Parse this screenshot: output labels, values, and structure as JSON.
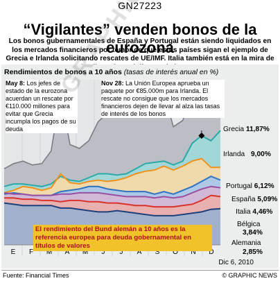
{
  "header": {
    "code": "GN27223",
    "title": "“Vigilantes” venden bonos de la eurozona",
    "dek": "Los bonos gubernamentales de España y Portugal están siendo liquidados en los mercados financieros por temor de que estos países sigan el ejemplo de Grecia e Irlanda solicitando rescates de UE/IMF. Italia también está en la mira de los llamados “vigilantes de bonos”"
  },
  "chart_data": {
    "type": "area",
    "title": "Rendimientos de bonos a 10 años",
    "subtitle": "(tasas de interés anual en %)",
    "categories": [
      "E",
      "F",
      "M",
      "A",
      "M",
      "J",
      "J",
      "A",
      "S",
      "O",
      "N",
      "D"
    ],
    "x": [
      0,
      1,
      2,
      3,
      4,
      5,
      6,
      7,
      8,
      9,
      10,
      11,
      12,
      13,
      14,
      15,
      16,
      17,
      18,
      19,
      20,
      21,
      22,
      23
    ],
    "ylim": [
      0,
      13
    ],
    "series": [
      {
        "name": "Grecia",
        "label": "11,87%",
        "color": "#7a7d84",
        "values": [
          6.0,
          6.4,
          6.6,
          6.3,
          6.4,
          7.4,
          12.0,
          7.9,
          7.6,
          8.2,
          9.7,
          10.4,
          10.6,
          10.4,
          11.1,
          11.6,
          10.6,
          11.9,
          9.3,
          9.8,
          11.8,
          11.3,
          12.0,
          11.9
        ]
      },
      {
        "name": "Irlanda",
        "label": "9,00%",
        "color": "#2aa9a8",
        "values": [
          4.6,
          4.8,
          4.8,
          4.7,
          4.6,
          4.8,
          5.4,
          5.1,
          5.0,
          5.3,
          5.6,
          5.6,
          5.5,
          5.6,
          6.0,
          6.4,
          6.5,
          6.6,
          6.3,
          6.6,
          8.0,
          8.6,
          8.2,
          9.0
        ]
      },
      {
        "name": "Portugal",
        "label": "6,12%",
        "color": "#f0921f",
        "values": [
          4.1,
          4.3,
          4.6,
          4.5,
          4.3,
          4.5,
          5.6,
          4.9,
          4.8,
          5.0,
          5.1,
          5.0,
          5.1,
          5.3,
          5.6,
          5.8,
          5.9,
          6.2,
          5.9,
          6.2,
          6.6,
          6.8,
          6.1,
          6.1
        ]
      },
      {
        "name": "España",
        "label": "5,09%",
        "color": "#2f73c0",
        "values": [
          4.0,
          4.1,
          4.0,
          3.9,
          3.9,
          3.9,
          4.2,
          4.3,
          4.4,
          4.6,
          4.6,
          4.4,
          4.3,
          4.2,
          4.2,
          4.2,
          4.0,
          4.2,
          4.0,
          4.3,
          4.6,
          5.0,
          5.4,
          5.1
        ]
      },
      {
        "name": "Italia",
        "label": "4,46%",
        "color": "#9a4fa0",
        "values": [
          4.1,
          4.0,
          4.0,
          3.9,
          3.9,
          3.9,
          4.0,
          4.0,
          4.1,
          4.1,
          4.1,
          4.0,
          3.9,
          3.8,
          3.8,
          3.8,
          3.7,
          3.8,
          3.7,
          3.8,
          4.1,
          4.4,
          4.6,
          4.5
        ]
      },
      {
        "name": "Bélgica",
        "label": "3,84%",
        "color": "#d9322b",
        "values": [
          3.7,
          3.7,
          3.6,
          3.6,
          3.5,
          3.5,
          3.4,
          3.5,
          3.5,
          3.4,
          3.4,
          3.3,
          3.3,
          3.2,
          3.1,
          3.1,
          3.0,
          3.0,
          3.0,
          3.1,
          3.2,
          3.5,
          3.9,
          3.8
        ]
      },
      {
        "name": "Alemania",
        "label": "2,85%",
        "color": "#1f3f7a",
        "values": [
          3.3,
          3.2,
          3.1,
          3.1,
          3.1,
          3.1,
          2.9,
          2.9,
          2.8,
          2.7,
          2.6,
          2.6,
          2.7,
          2.6,
          2.5,
          2.4,
          2.3,
          2.3,
          2.3,
          2.4,
          2.5,
          2.6,
          2.8,
          2.85
        ]
      }
    ],
    "annotations": [
      {
        "head": "May 8:",
        "text": "Los jefes de estado de la eurozona acuerdan un rescate por €110.000 millones para evitar que Grecia incumpla los pagos de su deuda",
        "series": "Grecia",
        "x": 6
      },
      {
        "head": "Nov 28:",
        "text": "La Unión Europea aprueba un paquete por €85.000m para Irlanda. El rescate no consigue que los mercados financieros dejen de llevar al alza las tasas de interés de los bonos",
        "series": "Irlanda",
        "x": 21
      }
    ],
    "note": "El rendimiento del Bund alemán a 10 años es la referencia europea para deuda gobernamental en títulos de valores",
    "date": "Dic 6, 2010"
  },
  "footer": {
    "source": "Fuente: Financial Times",
    "credit": "© GRAPHIC NEWS"
  },
  "watermark": "GRAPHIC NEWS"
}
